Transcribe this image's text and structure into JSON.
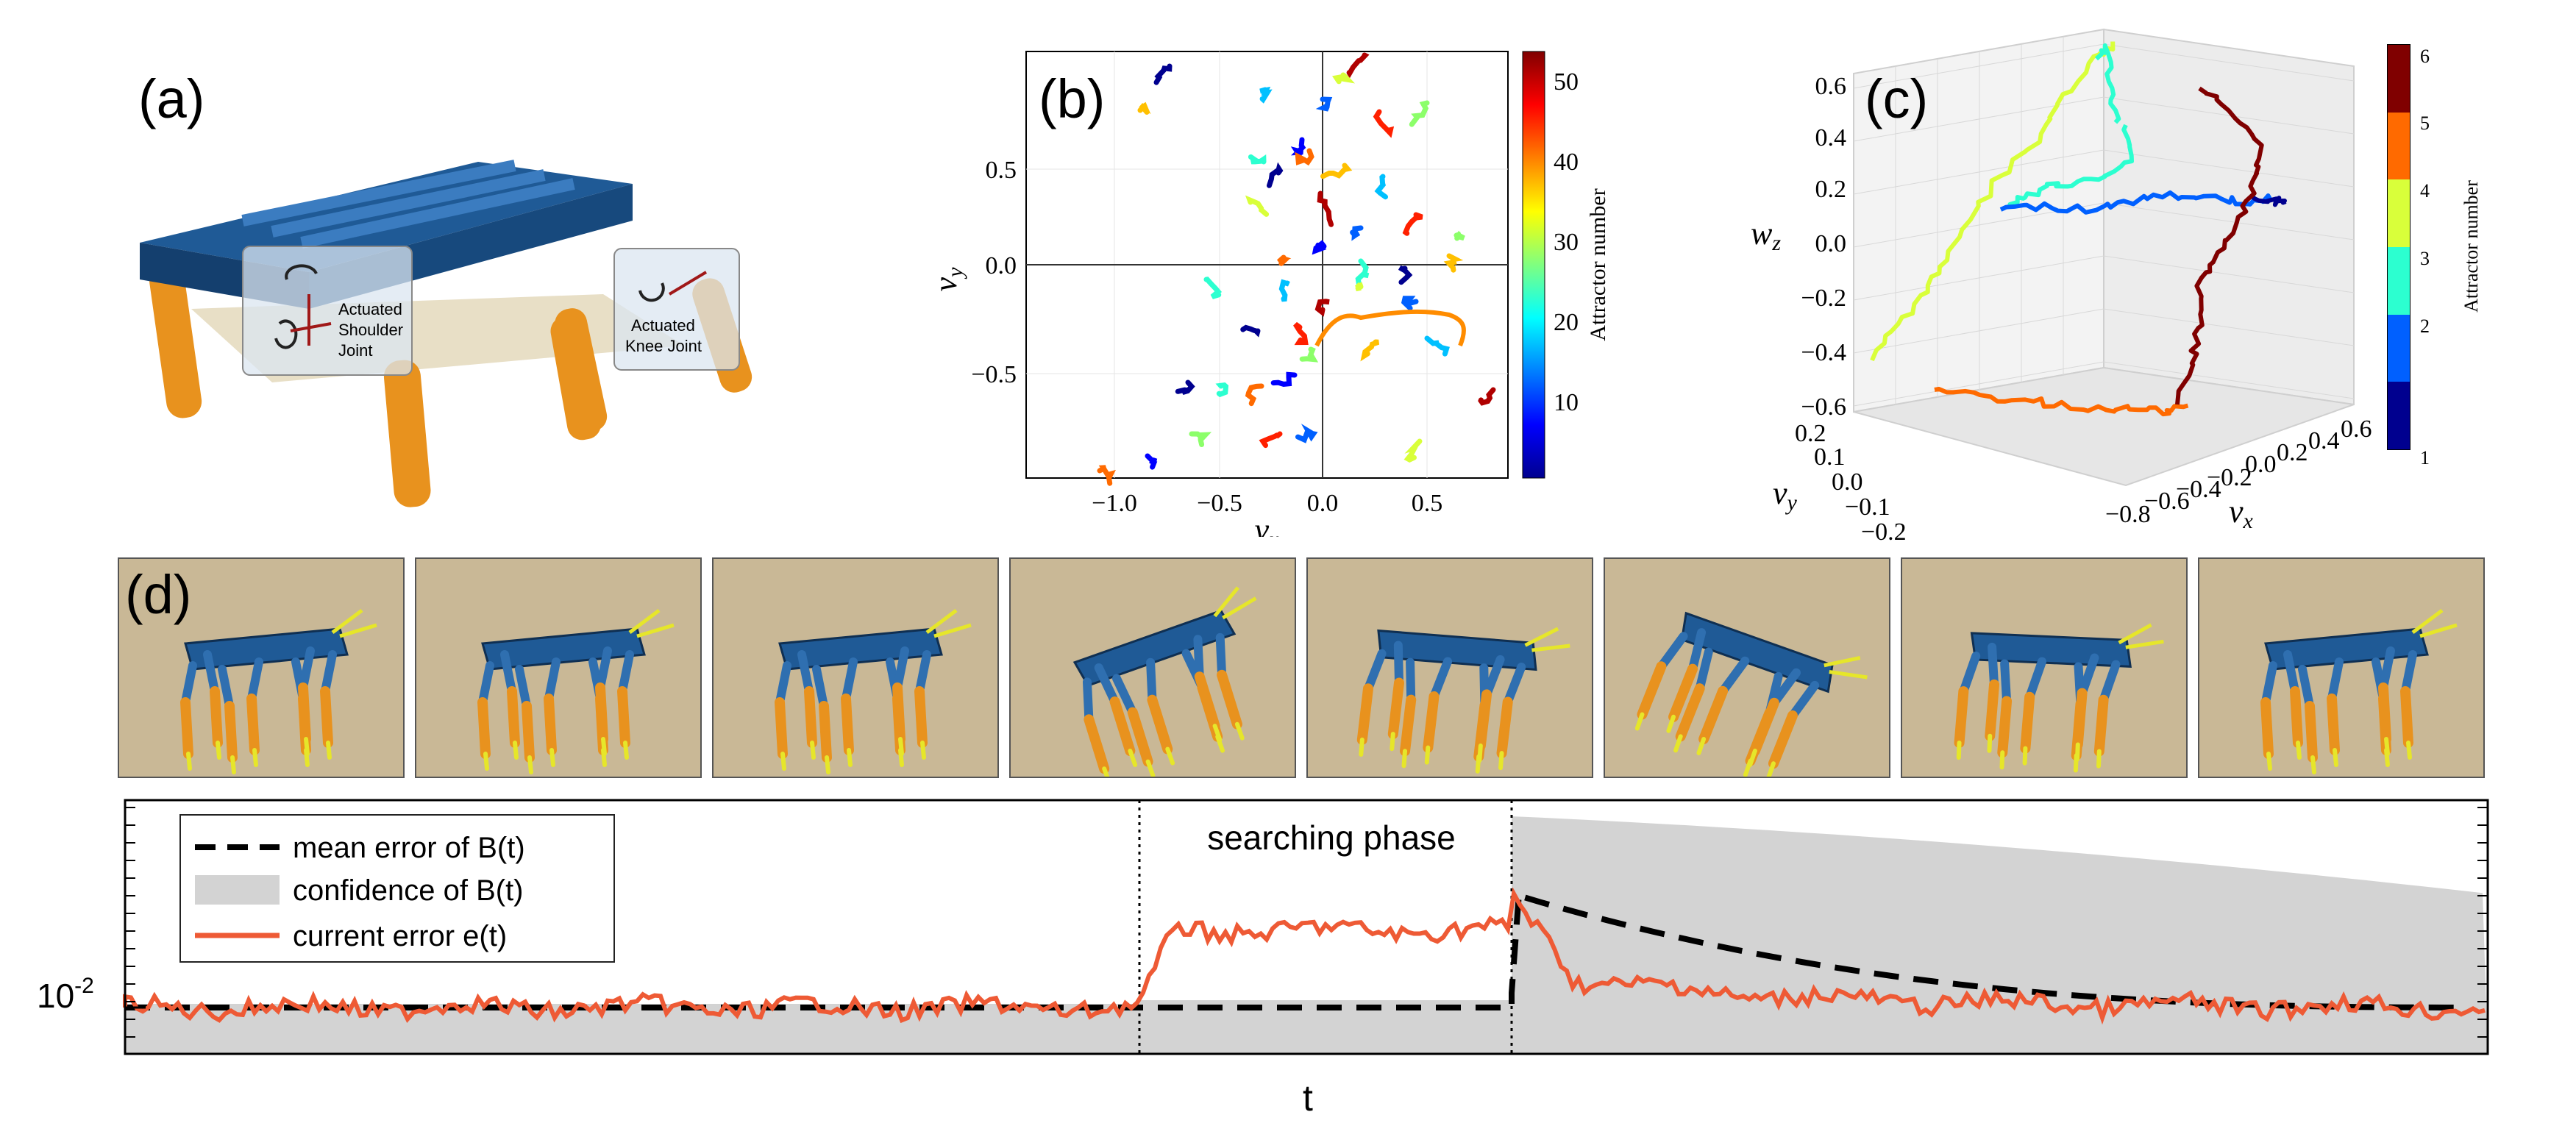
{
  "panels": {
    "a": {
      "label": "(a)",
      "shoulder_label": [
        "Actuated",
        "Shoulder",
        "Joint"
      ],
      "knee_label": [
        "Actuated",
        "Knee Joint"
      ]
    },
    "b": {
      "label": "(b)",
      "xlabel": "v_x",
      "ylabel": "v_y",
      "xticks": [
        "−1.0",
        "−0.5",
        "0.0",
        "0.5"
      ],
      "yticks": [
        "0.5",
        "0.0",
        "−0.5"
      ],
      "colorbar_label": "Attractor number",
      "colorbar_ticks": [
        "50",
        "40",
        "30",
        "20",
        "10"
      ]
    },
    "c": {
      "label": "(c)",
      "zlabel": "w_z",
      "ylabel": "v_y",
      "xlabel": "v_x",
      "zticks": [
        "0.6",
        "0.4",
        "0.2",
        "0.0",
        "−0.2",
        "−0.4",
        "−0.6"
      ],
      "yticks": [
        "0.2",
        "0.1",
        "0.0",
        "−0.1",
        "−0.2"
      ],
      "xticks": [
        "−0.8",
        "−0.6",
        "−0.4",
        "−0.2",
        "0.0",
        "0.2",
        "0.4",
        "0.6"
      ],
      "colorbar_label": "Attractor number",
      "colorbar_ticks": [
        "6",
        "5",
        "4",
        "3",
        "2",
        "1"
      ]
    },
    "d": {
      "label": "(d)",
      "frame_count": 8
    },
    "e": {
      "phase_label": "searching phase",
      "y_tick": "10",
      "y_tick_exp": "-2",
      "xlabel": "t",
      "legend": [
        "mean error of B(t)",
        "confidence of B(t)",
        "current error e(t)"
      ]
    }
  },
  "colors": {
    "robot_body": "#1f5a96",
    "robot_leg": "#e8921e",
    "robot_tip": "#e6e62a",
    "ground": "#c9b896",
    "error_line": "#ee5a35",
    "confidence": "#d3d3d3"
  }
}
